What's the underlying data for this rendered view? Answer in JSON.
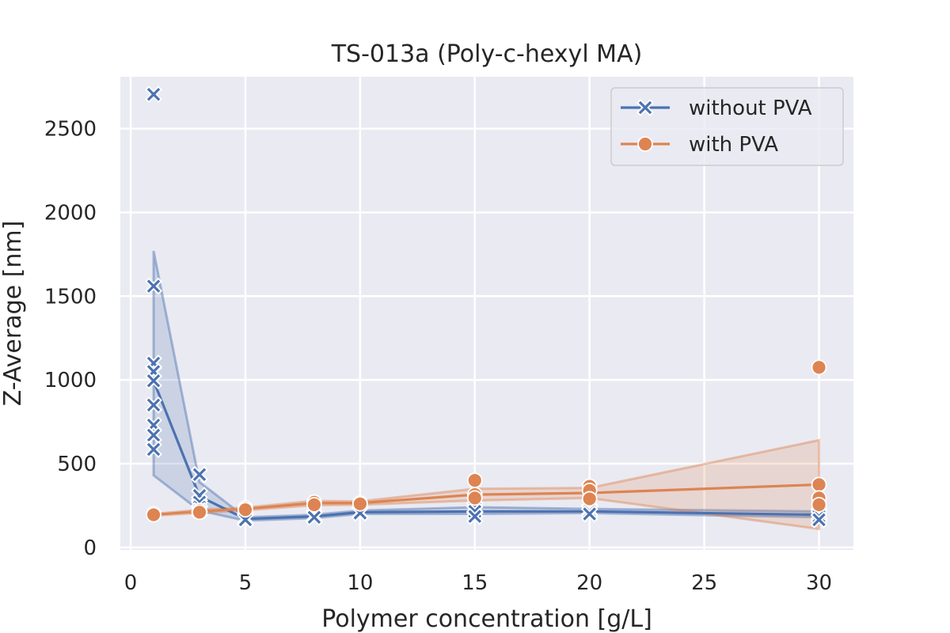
{
  "chart_data": {
    "type": "line",
    "title": "TS-013a (Poly-c-hexyl MA)",
    "xlabel": "Polymer concentration [g/L]",
    "ylabel": "Z-Average [nm]",
    "xlim": [
      -0.45,
      31.5
    ],
    "ylim": [
      -15,
      2810
    ],
    "xticks": [
      0,
      5,
      10,
      15,
      20,
      25,
      30
    ],
    "yticks": [
      0,
      500,
      1000,
      1500,
      2000,
      2500
    ],
    "xtick_labels": [
      "0",
      "5",
      "10",
      "15",
      "20",
      "25",
      "30"
    ],
    "ytick_labels": [
      "0",
      "500",
      "1000",
      "1500",
      "2000",
      "2500"
    ],
    "grid": true,
    "legend_position": "top-right",
    "series": [
      {
        "name": "without PVA",
        "color": "#4c72b0",
        "marker": "x",
        "x": [
          1,
          3,
          5,
          8,
          10,
          15,
          20,
          30
        ],
        "mean": [
          995,
          305,
          170,
          185,
          210,
          215,
          215,
          195
        ],
        "ci_low": [
          430,
          220,
          160,
          175,
          200,
          200,
          205,
          180
        ],
        "ci_high": [
          1770,
          390,
          180,
          195,
          220,
          240,
          230,
          215
        ],
        "points": [
          [
            1,
            2705
          ],
          [
            1,
            1560
          ],
          [
            1,
            1100
          ],
          [
            1,
            1050
          ],
          [
            1,
            995
          ],
          [
            1,
            850
          ],
          [
            1,
            730
          ],
          [
            1,
            670
          ],
          [
            1,
            585
          ],
          [
            3,
            435
          ],
          [
            3,
            310
          ],
          [
            3,
            270
          ],
          [
            3,
            240
          ],
          [
            3,
            220
          ],
          [
            5,
            175
          ],
          [
            5,
            165
          ],
          [
            8,
            190
          ],
          [
            8,
            180
          ],
          [
            10,
            210
          ],
          [
            10,
            205
          ],
          [
            15,
            235
          ],
          [
            15,
            215
          ],
          [
            15,
            185
          ],
          [
            20,
            225
          ],
          [
            20,
            215
          ],
          [
            20,
            200
          ],
          [
            30,
            200
          ],
          [
            30,
            185
          ],
          [
            30,
            165
          ]
        ]
      },
      {
        "name": "with PVA",
        "color": "#dd8452",
        "marker": "o",
        "x": [
          1,
          3,
          5,
          8,
          10,
          15,
          20,
          30
        ],
        "mean": [
          195,
          215,
          230,
          265,
          265,
          315,
          325,
          375
        ],
        "ci_low": [
          190,
          205,
          222,
          252,
          255,
          280,
          295,
          110
        ],
        "ci_high": [
          200,
          225,
          238,
          278,
          275,
          350,
          355,
          640
        ],
        "points": [
          [
            1,
            200
          ],
          [
            1,
            195
          ],
          [
            3,
            220
          ],
          [
            3,
            210
          ],
          [
            5,
            235
          ],
          [
            5,
            225
          ],
          [
            8,
            270
          ],
          [
            8,
            255
          ],
          [
            10,
            265
          ],
          [
            10,
            260
          ],
          [
            15,
            400
          ],
          [
            15,
            315
          ],
          [
            15,
            295
          ],
          [
            20,
            365
          ],
          [
            20,
            340
          ],
          [
            20,
            290
          ],
          [
            30,
            1075
          ],
          [
            30,
            375
          ],
          [
            30,
            295
          ],
          [
            30,
            255
          ]
        ]
      }
    ]
  }
}
